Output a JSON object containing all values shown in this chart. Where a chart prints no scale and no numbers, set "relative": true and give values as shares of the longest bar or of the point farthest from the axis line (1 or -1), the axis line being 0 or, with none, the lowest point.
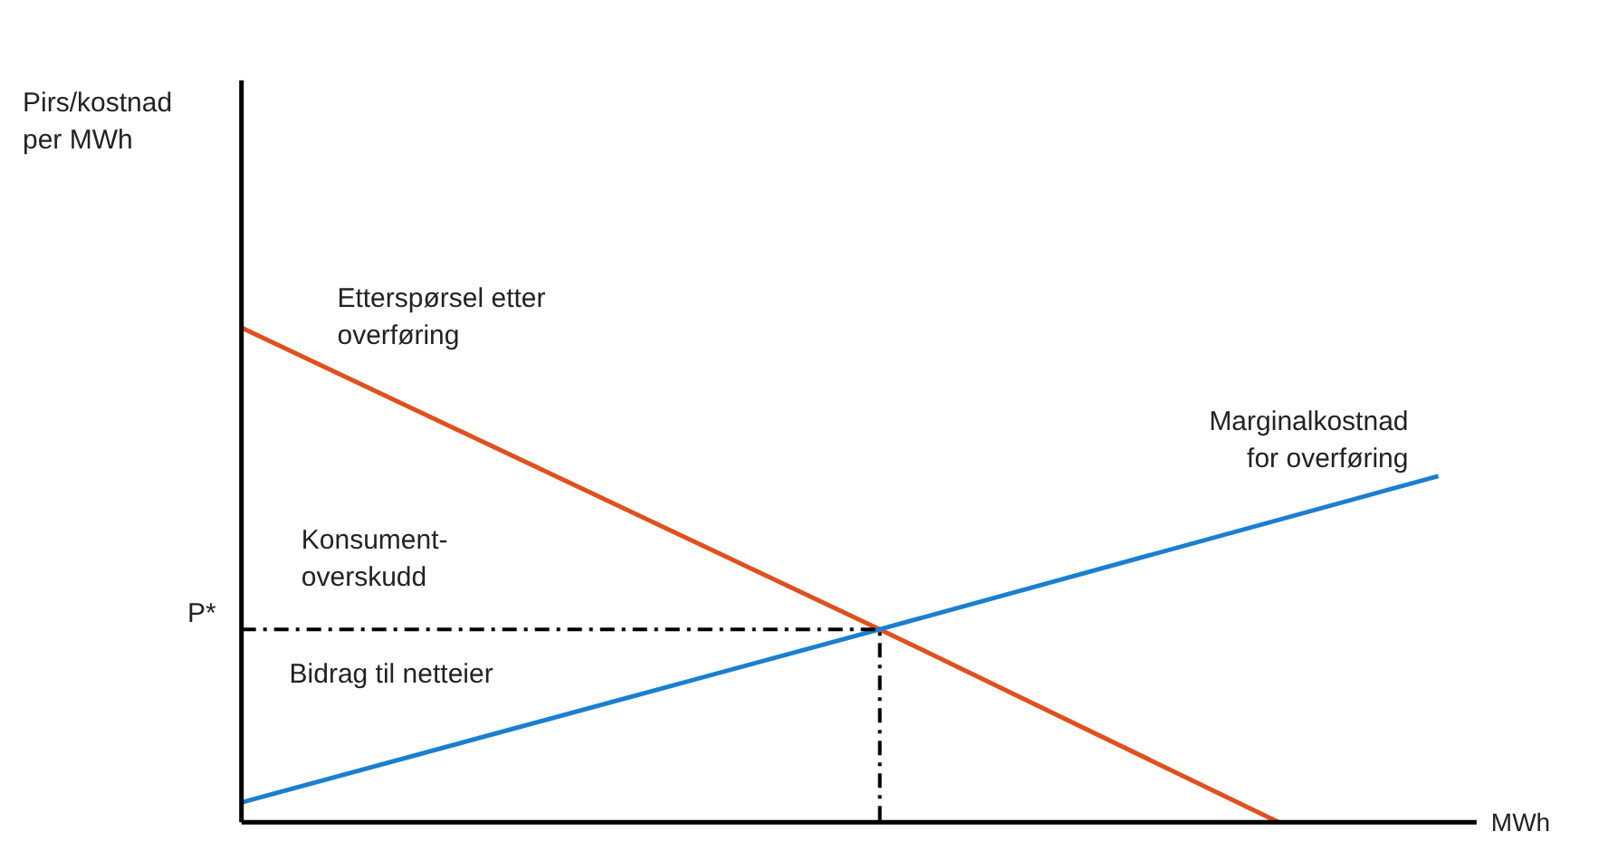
{
  "chart_data": {
    "type": "line",
    "relative": true,
    "xlabel": "MWh",
    "line_style": "solid",
    "marker": "none",
    "grid": false,
    "categories": [
      null,
      null,
      null,
      null,
      null,
      null,
      null,
      null,
      null,
      null,
      null,
      null,
      null,
      null,
      null,
      null
    ],
    "series": [
      {
        "name": "Etterspørsel etter\noverføring",
        "color": "#e0501e",
        "values": [
          1,
          null,
          null,
          null,
          null,
          null,
          null,
          null,
          0.39,
          null,
          null,
          null,
          null,
          0,
          null,
          null
        ]
      },
      {
        "name": "Marginalkostnad\nfor overføring",
        "color": "#1a7fd0",
        "values": [
          0.04,
          null,
          null,
          null,
          null,
          null,
          null,
          null,
          0.39,
          null,
          null,
          null,
          null,
          null,
          null,
          0.7
        ]
      }
    ],
    "ref_lines": [
      {
        "axis": "y",
        "value": 0.39,
        "label": "P*",
        "color": "#000000",
        "line_style": "dashed"
      }
    ],
    "annotations": [
      "Pirs/kostnad\nper MWh",
      "Konsument-\noverskudd",
      "Bidrag til netteier"
    ]
  }
}
